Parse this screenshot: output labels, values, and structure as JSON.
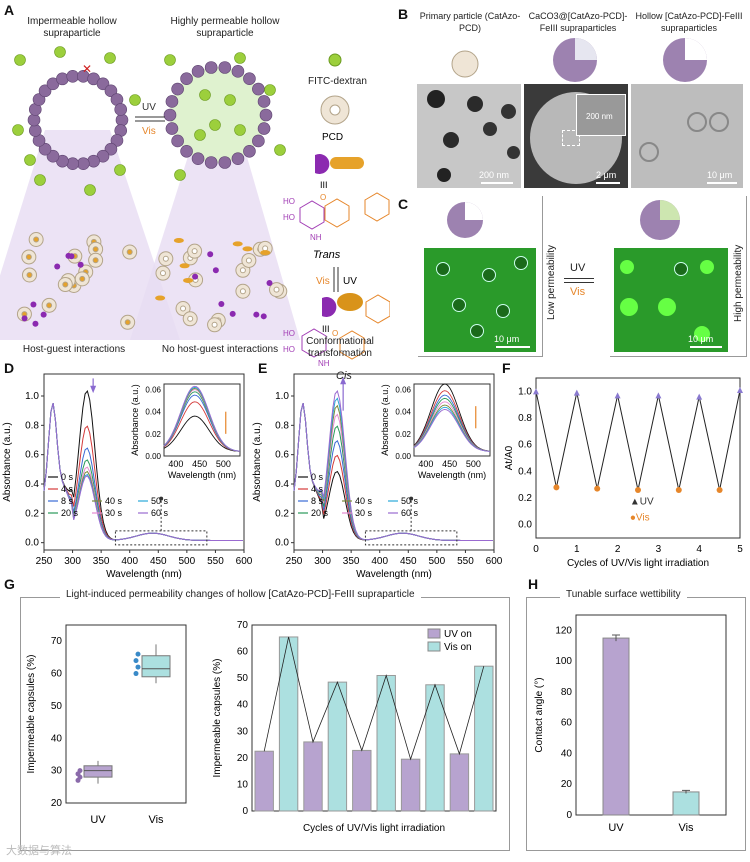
{
  "panelA": {
    "label": "A",
    "left_title": "Impermeable hollow supraparticle",
    "right_title": "Highly permeable hollow supraparticle",
    "uv": "UV",
    "vis": "Vis",
    "legend_fitc": "FITC-dextran",
    "legend_pcd": "PCD",
    "trans": "Trans",
    "cis": "Cis",
    "uv2": "UV",
    "vis2": "Vis",
    "left_caption": "Host-guest interactions",
    "mid_caption": "No host-guest interactions",
    "right_caption": "Conformational transformation",
    "ho1": "HO",
    "ho2": "HO",
    "nh1": "NH",
    "ho3": "HO",
    "ho4": "HO",
    "nh2": "NH",
    "o1": "O",
    "o2": "O",
    "iii1": "III",
    "iii2": "III"
  },
  "panelB": {
    "label": "B",
    "col1": "Primary particle (CatAzo-PCD)",
    "col2": "CaCO3@[CatAzo-PCD]-FeIII supraparticles",
    "col3": "Hollow [CatAzo-PCD]-FeIII supraparticles",
    "scale1": "200 nm",
    "scale2": "2 μm",
    "scale2b": "200 nm",
    "scale3": "10 μm"
  },
  "panelC": {
    "label": "C",
    "low": "Low permeability",
    "high": "High permeability",
    "uv": "UV",
    "vis": "Vis",
    "scale1": "10 μm",
    "scale2": "10 μm"
  },
  "panelG": {
    "label": "G",
    "title": "Light-induced permeability changes of hollow [CatAzo-PCD]-FeIII supraparticle"
  },
  "panelH": {
    "label": "H",
    "title": "Tunable surface wettibility"
  },
  "watermark": "大数据与算法",
  "chart_data": [
    {
      "id": "D",
      "type": "line",
      "title": "",
      "xlabel": "Wavelength (nm)",
      "ylabel": "Absorbance (a.u.)",
      "xlim": [
        250,
        600
      ],
      "ylim": [
        -0.05,
        1.15
      ],
      "xticks": [
        250,
        300,
        350,
        400,
        450,
        500,
        550,
        600
      ],
      "yticks": [
        0.0,
        0.2,
        0.4,
        0.6,
        0.8,
        1.0
      ],
      "legend": [
        "0 s",
        "4 s",
        "8 s",
        "20 s",
        "30 s",
        "40 s",
        "50 s",
        "60 s"
      ],
      "peak_values": [
        1.02,
        0.78,
        0.63,
        0.55,
        0.5,
        0.47,
        0.45,
        0.44
      ],
      "trend_arrow": "down",
      "inset": {
        "xlabel": "Wavelength (nm)",
        "ylabel": "Absorbance (a.u.)",
        "xlim": [
          375,
          535
        ],
        "ylim": [
          0.0,
          0.065
        ],
        "xticks": [
          400,
          450,
          500
        ],
        "yticks": [
          0.0,
          0.02,
          0.04,
          0.06
        ],
        "peak_values": [
          0.032,
          0.045,
          0.051,
          0.054,
          0.056,
          0.057,
          0.058,
          0.059
        ],
        "trend_arrow": "up"
      }
    },
    {
      "id": "E",
      "type": "line",
      "title": "",
      "xlabel": "Wavelength (nm)",
      "ylabel": "Absorbance (a.u.)",
      "xlim": [
        250,
        600
      ],
      "ylim": [
        -0.05,
        1.15
      ],
      "xticks": [
        250,
        300,
        350,
        400,
        450,
        500,
        550,
        600
      ],
      "yticks": [
        0.0,
        0.2,
        0.4,
        0.6,
        0.8,
        1.0
      ],
      "legend": [
        "0 s",
        "4 s",
        "8 s",
        "20 s",
        "30 s",
        "40 s",
        "50 s",
        "60 s"
      ],
      "peak_values": [
        0.47,
        0.58,
        0.68,
        0.78,
        0.86,
        0.92,
        0.97,
        1.02
      ],
      "trend_arrow": "up",
      "inset": {
        "xlabel": "Wavelength (nm)",
        "ylabel": "Absorbance (a.u.)",
        "xlim": [
          375,
          535
        ],
        "ylim": [
          0.0,
          0.065
        ],
        "xticks": [
          400,
          450,
          500
        ],
        "yticks": [
          0.0,
          0.02,
          0.04,
          0.06
        ],
        "peak_values": [
          0.061,
          0.055,
          0.051,
          0.048,
          0.045,
          0.042,
          0.04,
          0.038
        ],
        "trend_arrow": "down"
      }
    },
    {
      "id": "F",
      "type": "line",
      "xlabel": "Cycles of UV/Vis light irradiation",
      "ylabel": "At/A0",
      "xlim": [
        0,
        5
      ],
      "ylim": [
        -0.1,
        1.1
      ],
      "xticks": [
        0,
        1,
        2,
        3,
        4,
        5
      ],
      "yticks": [
        0.0,
        0.2,
        0.4,
        0.6,
        0.8,
        1.0
      ],
      "x": [
        0,
        0.5,
        1,
        1.5,
        2,
        2.5,
        3,
        3.5,
        4,
        4.5,
        5
      ],
      "y": [
        1.0,
        0.28,
        0.99,
        0.27,
        0.97,
        0.26,
        0.97,
        0.26,
        0.96,
        0.26,
        1.01
      ],
      "legend": [
        "UV",
        "Vis"
      ]
    },
    {
      "id": "G-left",
      "type": "box",
      "ylabel": "Impermeable capsules (%)",
      "categories": [
        "UV",
        "Vis"
      ],
      "ylim": [
        20,
        75
      ],
      "yticks": [
        20,
        30,
        40,
        50,
        60,
        70
      ],
      "boxes": [
        {
          "name": "UV",
          "min": 26,
          "q1": 28,
          "median": 30,
          "q3": 31.5,
          "max": 33,
          "points": [
            27,
            28,
            29,
            30
          ]
        },
        {
          "name": "Vis",
          "min": 57,
          "q1": 59,
          "median": 61.5,
          "q3": 65.5,
          "max": 69,
          "points": [
            60,
            62,
            64,
            66
          ]
        }
      ]
    },
    {
      "id": "G-right",
      "type": "bar",
      "xlabel": "Cycles of UV/Vis light irradiation",
      "ylabel": "Impermeable capsules (%)",
      "ylim": [
        0,
        70
      ],
      "yticks": [
        0,
        10,
        20,
        30,
        40,
        50,
        60,
        70
      ],
      "legend": [
        "UV on",
        "Vis on"
      ],
      "values": [
        22.5,
        65.5,
        26,
        48.5,
        22.8,
        51,
        19.5,
        47.5,
        21.5,
        54.5
      ],
      "series_of_bar": [
        "UV on",
        "Vis on",
        "UV on",
        "Vis on",
        "UV on",
        "Vis on",
        "UV on",
        "Vis on",
        "UV on",
        "Vis on"
      ]
    },
    {
      "id": "H",
      "type": "bar",
      "ylabel": "Contact angle (°)",
      "categories": [
        "UV",
        "Vis"
      ],
      "values": [
        115,
        15
      ],
      "errors": [
        2,
        1
      ],
      "ylim": [
        0,
        130
      ],
      "yticks": [
        0,
        20,
        40,
        60,
        80,
        100,
        120
      ]
    }
  ],
  "colors": {
    "uv_bar": "#b7a3cf",
    "vis_bar": "#ace0e0",
    "purple_bead": "#8a6a9c",
    "green_bead": "#9ccf3c",
    "orange": "#e6862a",
    "confocal_green": "#2a9a2a"
  }
}
